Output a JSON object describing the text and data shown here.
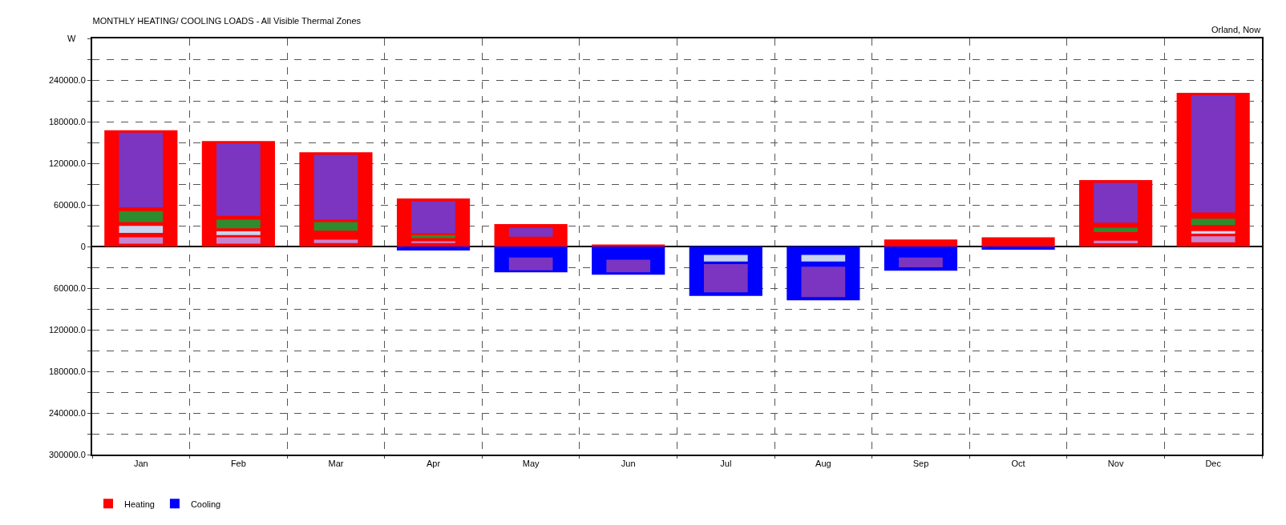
{
  "chart_data": {
    "type": "bar",
    "title": "MONTHLY HEATING/ COOLING LOADS - All Visible Thermal Zones",
    "subtitle": "Orland, Now",
    "ylabel": "W",
    "categories": [
      "Jan",
      "Feb",
      "Mar",
      "Apr",
      "May",
      "Jun",
      "Jul",
      "Aug",
      "Sep",
      "Oct",
      "Nov",
      "Dec"
    ],
    "series": [
      {
        "name": "Heating",
        "color": "#ff0000",
        "values": [
          167500,
          152000,
          136000,
          69300,
          32200,
          3000,
          null,
          null,
          10000,
          13400,
          95700,
          221400
        ]
      },
      {
        "name": "Cooling",
        "color": "#0000ff",
        "values": [
          null,
          null,
          null,
          -5800,
          -37300,
          -40600,
          -71200,
          -77600,
          -34900,
          -4600,
          null,
          null
        ]
      },
      {
        "color": "#7b35c0",
        "values": [
          107600,
          104900,
          93300,
          46600,
          12700,
          null,
          null,
          null,
          null,
          null,
          57400,
          169000
        ],
        "base": [
          56400,
          44000,
          38700,
          18700,
          14100,
          null,
          null,
          null,
          null,
          null,
          34300,
          49000
        ]
      },
      {
        "color": "#7b35c0",
        "values": [
          null,
          null,
          null,
          null,
          18300,
          18300,
          40500,
          44000,
          14000,
          null,
          null,
          null
        ],
        "base": [
          null,
          null,
          null,
          null,
          -34300,
          -37300,
          -66000,
          -73000,
          -30000,
          null,
          null,
          null
        ]
      },
      {
        "color": "#2e8b2e",
        "values": [
          16000,
          12500,
          12400,
          4400,
          null,
          null,
          null,
          null,
          null,
          null,
          6500,
          9300
        ],
        "base": [
          35100,
          26200,
          22700,
          12000,
          null,
          null,
          null,
          null,
          null,
          null,
          20700,
          30900
        ]
      },
      {
        "color": "#c8d4f0",
        "values": [
          10200,
          5400,
          null,
          null,
          null,
          null,
          9500,
          9500,
          null,
          null,
          null,
          3800
        ],
        "base": [
          19600,
          16400,
          null,
          null,
          null,
          null,
          -21500,
          -21500,
          null,
          null,
          null,
          18500
        ]
      },
      {
        "color": "#c884d0",
        "values": [
          9300,
          9300,
          4900,
          2700,
          null,
          null,
          null,
          null,
          null,
          null,
          3800,
          8600
        ],
        "base": [
          4000,
          4000,
          4900,
          4900,
          null,
          null,
          null,
          null,
          null,
          null,
          4500,
          6200
        ]
      }
    ],
    "ylim": [
      -300000,
      300000
    ],
    "yticks": [
      {
        "value": -300000,
        "label": "300000.0"
      },
      {
        "value": -270000,
        "label": null
      },
      {
        "value": -240000,
        "label": "240000.0"
      },
      {
        "value": -210000,
        "label": null
      },
      {
        "value": -180000,
        "label": "180000.0"
      },
      {
        "value": -150000,
        "label": null
      },
      {
        "value": -120000,
        "label": "120000.0"
      },
      {
        "value": -90000,
        "label": null
      },
      {
        "value": -60000,
        "label": "60000.0"
      },
      {
        "value": -30000,
        "label": null
      },
      0,
      {
        "value": 30000,
        "label": null
      },
      {
        "value": 60000,
        "label": "60000.0"
      },
      {
        "value": 90000,
        "label": null
      },
      {
        "value": 120000,
        "label": "120000.0"
      },
      {
        "value": 150000,
        "label": null
      },
      {
        "value": 180000,
        "label": "180000.0"
      },
      {
        "value": 210000,
        "label": null
      },
      {
        "value": 240000,
        "label": "240000.0"
      },
      {
        "value": 270000,
        "label": null
      },
      {
        "value": 300000,
        "label": null
      }
    ],
    "grid": true,
    "legend": "bottom left"
  }
}
